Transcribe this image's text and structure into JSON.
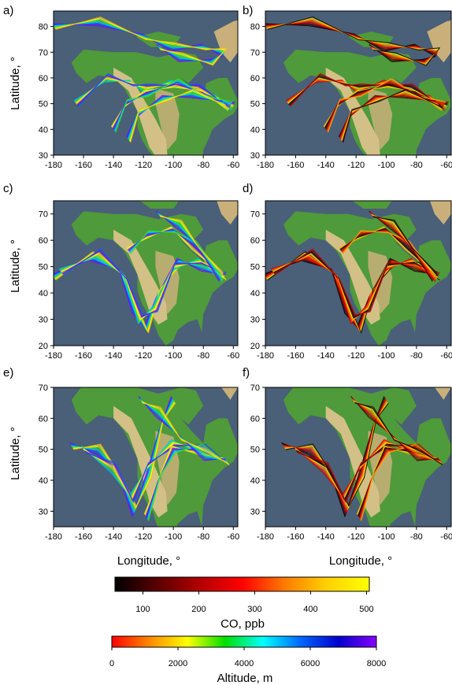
{
  "figure": {
    "xlabel": "Longitude, °",
    "ylabel": "Latitude, °",
    "co_colorbar": {
      "title": "CO, ppb",
      "ticks": [
        100,
        200,
        300,
        400,
        500
      ],
      "range": [
        50,
        505
      ],
      "stops": [
        "#000000",
        "#5a0000",
        "#b20000",
        "#ff0000",
        "#ff7a00",
        "#ffd000",
        "#ffff00"
      ]
    },
    "alt_colorbar": {
      "title": "Altitude, m",
      "ticks": [
        0,
        2000,
        4000,
        6000,
        8000
      ],
      "range": [
        0,
        8000
      ],
      "stops": [
        "#ff0000",
        "#ff8800",
        "#ffff00",
        "#00e000",
        "#00ffff",
        "#0066ff",
        "#0000cc",
        "#8800ff"
      ]
    },
    "map_colors": {
      "ocean": "#4a5f78",
      "land_low": "#4f9a3a",
      "land_mid": "#c9b07a",
      "land_high": "#e0c490"
    }
  },
  "chart_data": [
    {
      "type": "map-trajectories",
      "panel": "a)",
      "color_by": "Altitude, m",
      "xticks": [
        -180,
        -160,
        -140,
        -120,
        -100,
        -80,
        -60
      ],
      "yticks": [
        30,
        40,
        50,
        60,
        70,
        80
      ],
      "xlim": [
        -180,
        -57
      ],
      "ylim": [
        30,
        86
      ]
    },
    {
      "type": "map-trajectories",
      "panel": "b)",
      "color_by": "CO, ppb",
      "xticks": [
        -180,
        -160,
        -140,
        -120,
        -100,
        -80,
        -60
      ],
      "yticks": [
        30,
        40,
        50,
        60,
        70,
        80
      ],
      "xlim": [
        -180,
        -57
      ],
      "ylim": [
        30,
        86
      ]
    },
    {
      "type": "map-trajectories",
      "panel": "c)",
      "color_by": "Altitude, m",
      "xticks": [
        -180,
        -160,
        -140,
        -120,
        -100,
        -80,
        -60
      ],
      "yticks": [
        20,
        30,
        40,
        50,
        60,
        70
      ],
      "xlim": [
        -180,
        -57
      ],
      "ylim": [
        20,
        75
      ]
    },
    {
      "type": "map-trajectories",
      "panel": "d)",
      "color_by": "CO, ppb",
      "xticks": [
        -180,
        -160,
        -140,
        -120,
        -100,
        -80,
        -60
      ],
      "yticks": [
        20,
        30,
        40,
        50,
        60,
        70
      ],
      "xlim": [
        -180,
        -57
      ],
      "ylim": [
        20,
        75
      ]
    },
    {
      "type": "map-trajectories",
      "panel": "e)",
      "color_by": "Altitude, m",
      "xticks": [
        -180,
        -160,
        -140,
        -120,
        -100,
        -80,
        -60
      ],
      "yticks": [
        30,
        40,
        50,
        60,
        70
      ],
      "xlim": [
        -180,
        -57
      ],
      "ylim": [
        25,
        70
      ]
    },
    {
      "type": "map-trajectories",
      "panel": "f)",
      "color_by": "CO, ppb",
      "xticks": [
        -180,
        -160,
        -140,
        -120,
        -100,
        -80,
        -60
      ],
      "yticks": [
        30,
        40,
        50,
        60,
        70
      ],
      "xlim": [
        -180,
        -57
      ],
      "ylim": [
        25,
        70
      ]
    }
  ]
}
